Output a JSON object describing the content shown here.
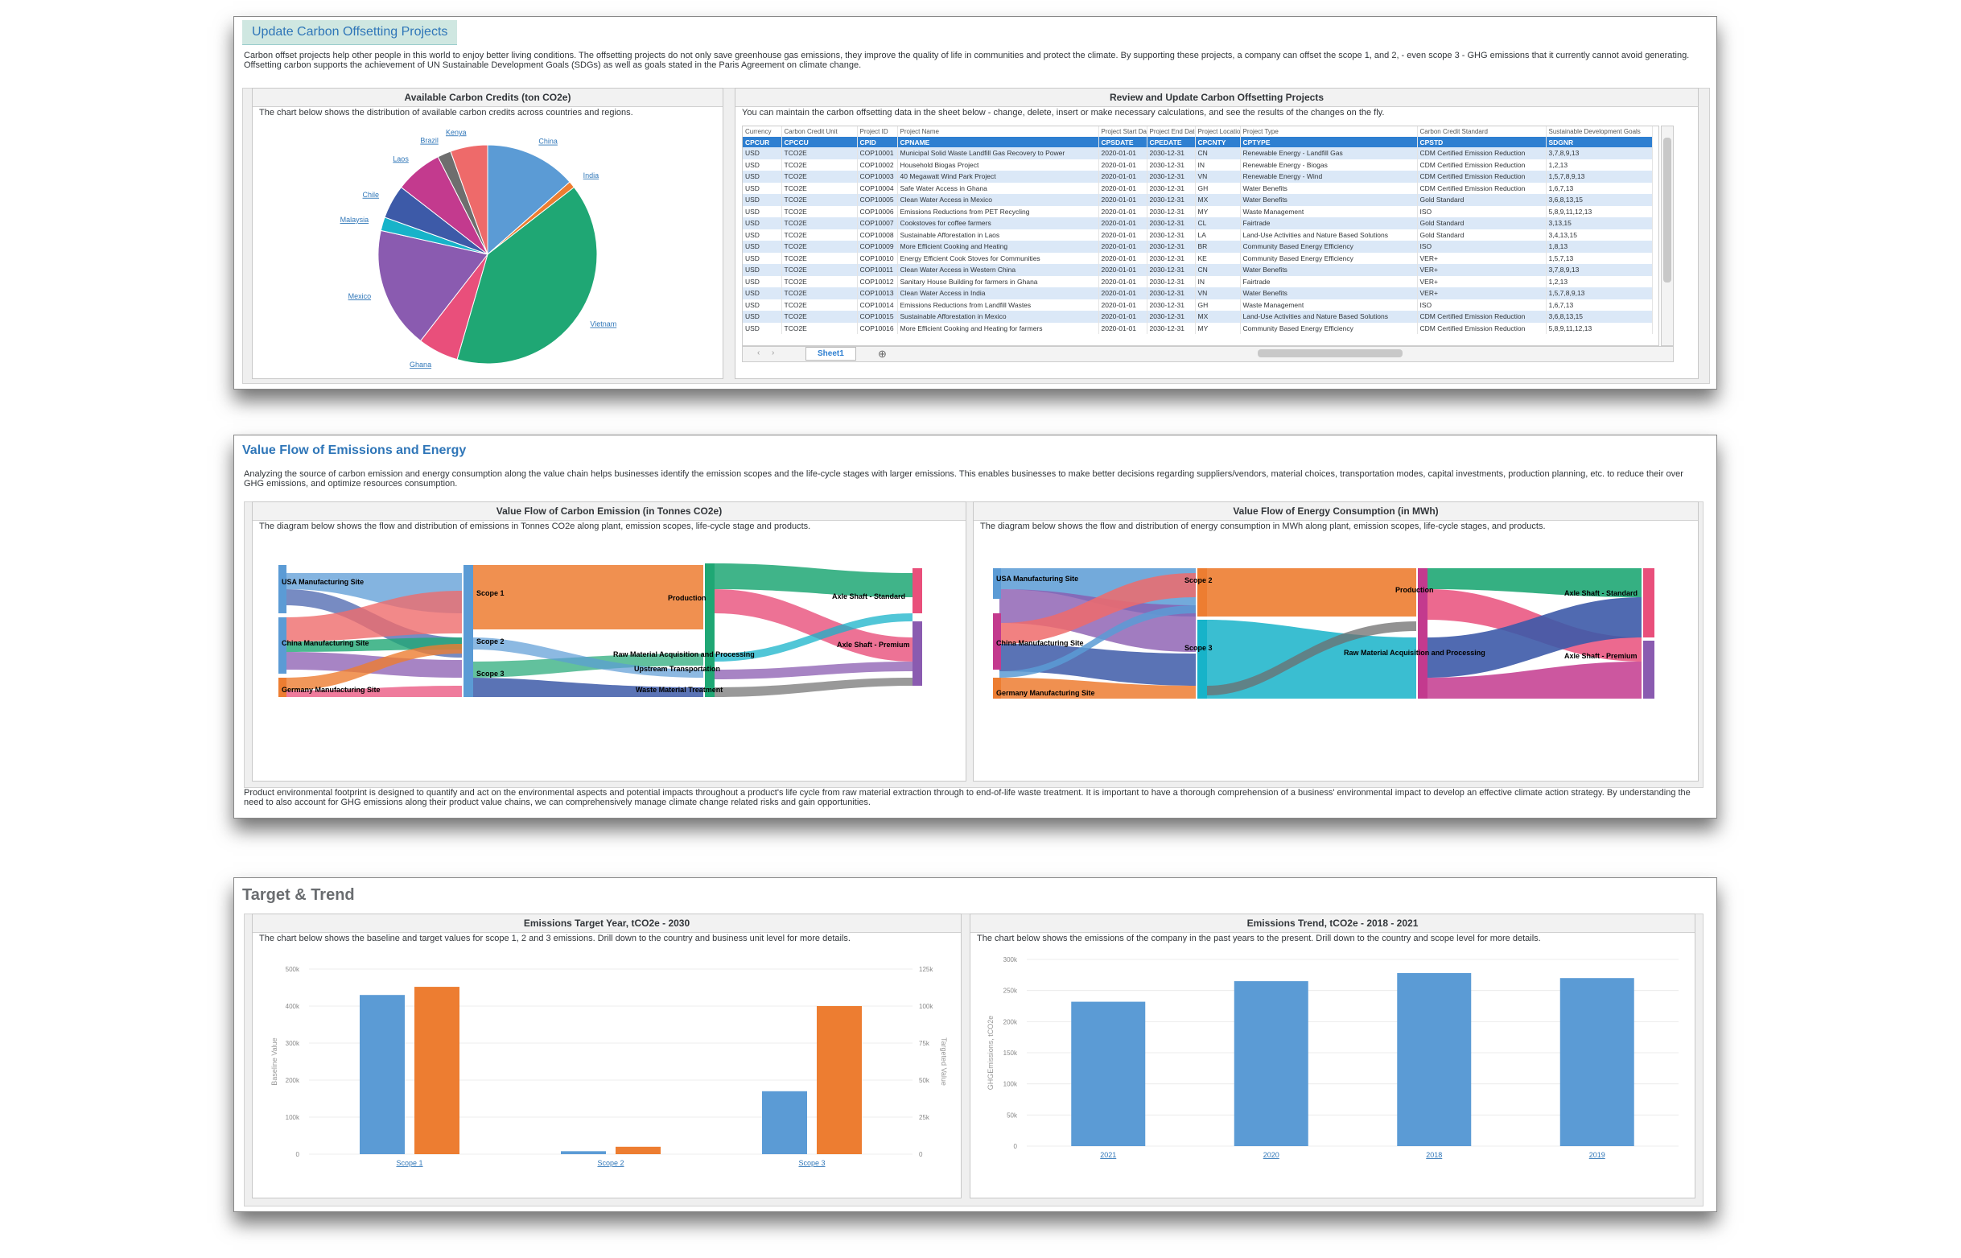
{
  "panel1": {
    "title": "Update Carbon Offsetting Projects",
    "description": "Carbon offset projects help other people in this world to enjoy better living conditions. The offsetting projects do not only save greenhouse gas emissions, they improve the quality of life in communities and protect the climate. By supporting these projects, a company can offset the scope 1, and 2, - even scope 3 - GHG emissions that it currently cannot avoid generating. Offsetting carbon supports the achievement of UN Sustainable Development Goals (SDGs) as well as goals stated in the Paris Agreement on climate change.",
    "credits_card": {
      "title": "Available Carbon Credits (ton CO2e)",
      "description": "The chart below shows the distribution of available carbon credits across countries and regions."
    },
    "review_card": {
      "title": "Review and Update Carbon Offsetting Projects",
      "description": "You can maintain the carbon offsetting data in the sheet below - change, delete, insert or make necessary calculations, and see the results of the changes on the fly."
    },
    "sheet": {
      "top_labels": [
        "Currency",
        "Carbon Credit Unit",
        "Project ID",
        "Project Name",
        "Project Start Date",
        "Project End Date",
        "Project Location",
        "Project Type",
        "Carbon Credit Standard",
        "Sustainable Development Goals"
      ],
      "headers": [
        "CPCUR",
        "CPCCU",
        "CPID",
        "CPNAME",
        "CPSDATE",
        "CPEDATE",
        "CPCNTY",
        "CPTYPE",
        "CPSTD",
        "SDGNR"
      ],
      "rows": [
        [
          "USD",
          "TCO2E",
          "COP10001",
          "Municipal Solid Waste Landfill Gas Recovery to Power",
          "2020-01-01",
          "2030-12-31",
          "CN",
          "Renewable Energy - Landfill Gas",
          "CDM Certified Emission Reduction",
          "3,7,8,9,13"
        ],
        [
          "USD",
          "TCO2E",
          "COP10002",
          "Household Biogas Project",
          "2020-01-01",
          "2030-12-31",
          "IN",
          "Renewable Energy - Biogas",
          "CDM Certified Emission Reduction",
          "1,2,13"
        ],
        [
          "USD",
          "TCO2E",
          "COP10003",
          "40 Megawatt Wind Park Project",
          "2020-01-01",
          "2030-12-31",
          "VN",
          "Renewable Energy - Wind",
          "CDM Certified Emission Reduction",
          "1,5,7,8,9,13"
        ],
        [
          "USD",
          "TCO2E",
          "COP10004",
          "Safe Water Access in Ghana",
          "2020-01-01",
          "2030-12-31",
          "GH",
          "Water Benefits",
          "CDM Certified Emission Reduction",
          "1,6,7,13"
        ],
        [
          "USD",
          "TCO2E",
          "COP10005",
          "Clean Water Access in Mexico",
          "2020-01-01",
          "2030-12-31",
          "MX",
          "Water Benefits",
          "Gold Standard",
          "3,6,8,13,15"
        ],
        [
          "USD",
          "TCO2E",
          "COP10006",
          "Emissions Reductions from PET Recycling",
          "2020-01-01",
          "2030-12-31",
          "MY",
          "Waste Management",
          "ISO",
          "5,8,9,11,12,13"
        ],
        [
          "USD",
          "TCO2E",
          "COP10007",
          "Cookstoves for coffee farmers",
          "2020-01-01",
          "2030-12-31",
          "CL",
          "Fairtrade",
          "Gold Standard",
          "3,13,15"
        ],
        [
          "USD",
          "TCO2E",
          "COP10008",
          "Sustainable Afforestation in Laos",
          "2020-01-01",
          "2030-12-31",
          "LA",
          "Land-Use Activities and Nature Based Solutions",
          "Gold Standard",
          "3,4,13,15"
        ],
        [
          "USD",
          "TCO2E",
          "COP10009",
          "More Efficient Cooking and Heating",
          "2020-01-01",
          "2030-12-31",
          "BR",
          "Community Based Energy Efficiency",
          "ISO",
          "1,8,13"
        ],
        [
          "USD",
          "TCO2E",
          "COP10010",
          "Energy Efficient Cook Stoves for Communities",
          "2020-01-01",
          "2030-12-31",
          "KE",
          "Community Based Energy Efficiency",
          "VER+",
          "1,5,7,13"
        ],
        [
          "USD",
          "TCO2E",
          "COP10011",
          "Clean Water Access in Western China",
          "2020-01-01",
          "2030-12-31",
          "CN",
          "Water Benefits",
          "VER+",
          "3,7,8,9,13"
        ],
        [
          "USD",
          "TCO2E",
          "COP10012",
          "Sanitary House Building for farmers in Ghana",
          "2020-01-01",
          "2030-12-31",
          "IN",
          "Fairtrade",
          "VER+",
          "1,2,13"
        ],
        [
          "USD",
          "TCO2E",
          "COP10013",
          "Clean Water Access in India",
          "2020-01-01",
          "2030-12-31",
          "VN",
          "Water Benefits",
          "VER+",
          "1,5,7,8,9,13"
        ],
        [
          "USD",
          "TCO2E",
          "COP10014",
          "Emissions Reductions from Landfill Wastes",
          "2020-01-01",
          "2030-12-31",
          "GH",
          "Waste Management",
          "ISO",
          "1,6,7,13"
        ],
        [
          "USD",
          "TCO2E",
          "COP10015",
          "Sustainable Afforestation in Mexico",
          "2020-01-01",
          "2030-12-31",
          "MX",
          "Land-Use Activities and Nature Based Solutions",
          "CDM Certified Emission Reduction",
          "3,6,8,13,15"
        ],
        [
          "USD",
          "TCO2E",
          "COP10016",
          "More Efficient Cooking and Heating for farmers",
          "2020-01-01",
          "2030-12-31",
          "MY",
          "Community Based Energy Efficiency",
          "CDM Certified Emission Reduction",
          "5,8,9,11,12,13"
        ]
      ],
      "sheet_tab": "Sheet1",
      "add_sheet": "⊕"
    }
  },
  "panel2": {
    "title": "Value Flow of Emissions and Energy",
    "description": "Analyzing the source of carbon emission and energy consumption along the value chain helps businesses identify the emission scopes and the life-cycle stages with larger emissions. This enables businesses to make better decisions regarding suppliers/vendors, material choices, transportation modes, capital investments, production planning, etc. to reduce their over GHG emissions, and optimize resources consumption.",
    "emission_card": {
      "title": "Value Flow of Carbon Emission (in Tonnes CO2e)",
      "description": "The diagram below shows the flow and distribution of emissions in Tonnes CO2e along plant, emission scopes, life-cycle stage and products.",
      "labels": [
        "USA Manufacturing Site",
        "China Manufacturing Site",
        "Germany Manufacturing Site",
        "Scope 1",
        "Scope 2",
        "Scope 3",
        "Production",
        "Raw Material Acquisition and Processing",
        "Upstream Transportation",
        "Waste Material Treatment",
        "Axle Shaft - Standard",
        "Axle Shaft - Premium"
      ]
    },
    "energy_card": {
      "title": "Value Flow of Energy Consumption (in MWh)",
      "description": "The diagram below shows the flow and distribution of energy consumption in MWh along plant, emission scopes, life-cycle stages, and products.",
      "labels": [
        "USA Manufacturing Site",
        "China Manufacturing Site",
        "Germany Manufacturing Site",
        "Scope 2",
        "Scope 3",
        "Production",
        "Raw Material Acquisition and Processing",
        "Axle Shaft - Standard",
        "Axle Shaft - Premium"
      ]
    },
    "footer": "Product environmental footprint is designed to quantify and act on the environmental aspects and potential impacts throughout a product's life cycle from raw material extraction through to end-of-life waste treatment. It is important to have a thorough comprehension of a business' environmental impact to develop an effective climate action strategy. By understanding the need to also account for GHG emissions along their product value chains, we can comprehensively manage climate change related risks and gain opportunities."
  },
  "panel3": {
    "title": "Target & Trend",
    "target_card": {
      "title": "Emissions Target Year, tCO2e - 2030",
      "description": "The chart below shows the baseline and target values for scope 1, 2 and 3 emissions. Drill down to the country and business unit level for more details."
    },
    "trend_card": {
      "title": "Emissions Trend, tCO2e - 2018 - 2021",
      "description": "The chart below shows the emissions of the company in the past years to the present. Drill down to the country and scope level for more details."
    }
  },
  "colors": {
    "accent_blue": "#2f76b8",
    "bar_blue": "#5b9bd5",
    "bar_orange": "#ed7d31",
    "sheet_header": "#2e7fd1",
    "sheet_band": "#dbe8f7"
  },
  "chart_data": [
    {
      "type": "pie",
      "categories": [
        "China",
        "India",
        "Vietnam",
        "Ghana",
        "Mexico",
        "Malaysia",
        "Chile",
        "Laos",
        "Brazil",
        "Kenya"
      ],
      "values": [
        13.5,
        1,
        40,
        6,
        18,
        2,
        5,
        7,
        2,
        5.5
      ],
      "colors": [
        "#5b9bd5",
        "#ed7d31",
        "#1fa774",
        "#e94f7b",
        "#8a5bb0",
        "#17b3c9",
        "#3d5aa8",
        "#c33a8e",
        "#6e6e6e",
        "#ee6a6a"
      ]
    },
    {
      "type": "bar",
      "title": "Emissions Target Year, tCO2e - 2030",
      "categories": [
        "Scope 1",
        "Scope 2",
        "Scope 3"
      ],
      "series": [
        {
          "values": [
            430000,
            8000,
            170000
          ],
          "color": "#5b9bd5"
        },
        {
          "values": [
            113000,
            5000,
            100000
          ],
          "color": "#ed7d31"
        }
      ],
      "ylabel": "Baseline Value",
      "y2label": "Targeted Value",
      "yticks": [
        "500k",
        "400k",
        "300k",
        "200k",
        "100k",
        "0"
      ],
      "y2ticks": [
        "125k",
        "100k",
        "75k",
        "50k",
        "25k",
        "0"
      ],
      "ylim": [
        0,
        500000
      ],
      "y2lim": [
        0,
        125000
      ]
    },
    {
      "type": "bar",
      "title": "Emissions Trend, tCO2e - 2018 - 2021",
      "categories": [
        "2021",
        "2020",
        "2018",
        "2019"
      ],
      "values": [
        232000,
        265000,
        278000,
        270000
      ],
      "ylabel": "GHGEmissions, tCO2e",
      "yticks": [
        "300k",
        "250k",
        "200k",
        "150k",
        "100k",
        "50k",
        "0"
      ],
      "ylim": [
        0,
        300000
      ]
    }
  ]
}
